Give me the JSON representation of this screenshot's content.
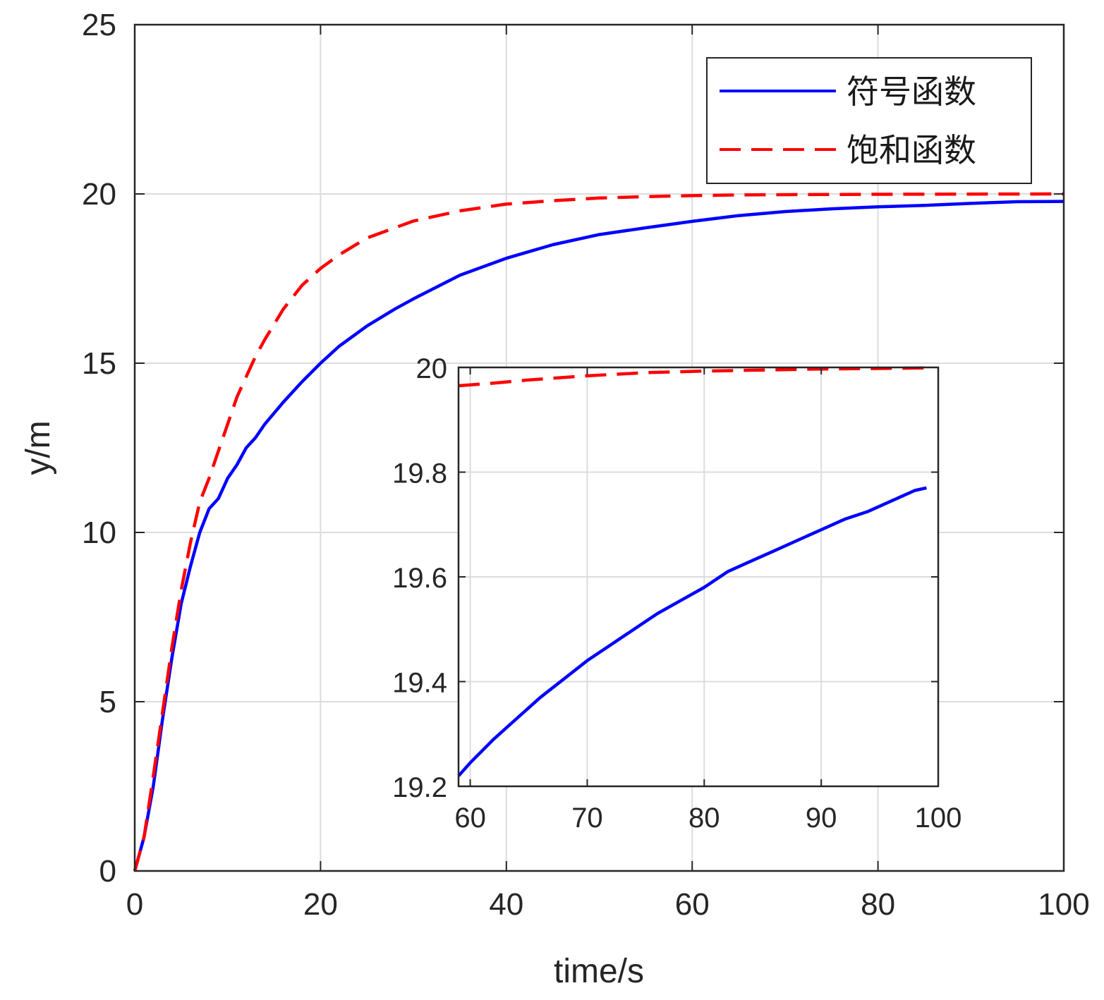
{
  "chart_data": [
    {
      "type": "line",
      "xlabel": "time/s",
      "ylabel": "y/m",
      "xlim": [
        0,
        100
      ],
      "ylim": [
        0,
        25
      ],
      "xticks": [
        "0",
        "20",
        "40",
        "60",
        "80",
        "100"
      ],
      "yticks": [
        "0",
        "5",
        "10",
        "15",
        "20",
        "25"
      ],
      "grid": true,
      "legend_position": "top-right",
      "series": [
        {
          "name": "符号函数",
          "color": "#0000ff",
          "style": "solid",
          "x": [
            0,
            1,
            2,
            3,
            4,
            5,
            6,
            7,
            8,
            9,
            10,
            11,
            12,
            13,
            14,
            16,
            18,
            20,
            22,
            25,
            28,
            30,
            35,
            40,
            45,
            50,
            55,
            60,
            65,
            70,
            75,
            80,
            85,
            90,
            95,
            100
          ],
          "y": [
            0,
            1.0,
            2.5,
            4.5,
            6.3,
            7.9,
            9.0,
            10.0,
            10.7,
            11.0,
            11.6,
            12.0,
            12.5,
            12.8,
            13.2,
            13.85,
            14.45,
            15.0,
            15.5,
            16.1,
            16.6,
            16.9,
            17.6,
            18.1,
            18.5,
            18.8,
            19.0,
            19.19,
            19.36,
            19.48,
            19.56,
            19.62,
            19.66,
            19.72,
            19.77,
            19.78
          ]
        },
        {
          "name": "饱和函数",
          "color": "#ff0000",
          "style": "dashed",
          "x": [
            0,
            1,
            2,
            3,
            4,
            5,
            6,
            7,
            8,
            9,
            10,
            11,
            12,
            13,
            14,
            16,
            18,
            20,
            22,
            25,
            28,
            30,
            35,
            40,
            45,
            50,
            55,
            60,
            65,
            70,
            80,
            90,
            100
          ],
          "y": [
            0,
            1.0,
            2.8,
            4.7,
            6.6,
            8.3,
            9.7,
            10.9,
            11.6,
            12.4,
            13.2,
            14.0,
            14.6,
            15.2,
            15.7,
            16.6,
            17.3,
            17.8,
            18.2,
            18.7,
            19.0,
            19.2,
            19.5,
            19.7,
            19.8,
            19.88,
            19.92,
            19.95,
            19.97,
            19.98,
            19.99,
            19.995,
            20.0
          ]
        }
      ]
    },
    {
      "type": "line",
      "role": "inset",
      "xlim": [
        59,
        100
      ],
      "ylim": [
        19.2,
        20
      ],
      "xticks": [
        "60",
        "70",
        "80",
        "90",
        "100"
      ],
      "yticks": [
        "19.2",
        "19.4",
        "19.6",
        "19.8",
        "20"
      ],
      "grid": true,
      "series": [
        {
          "color": "#0000ff",
          "style": "solid",
          "x": [
            59,
            60,
            62,
            64,
            66,
            68,
            70,
            72,
            74,
            76,
            78,
            80,
            82,
            84,
            86,
            88,
            90,
            92,
            94,
            96,
            98,
            99
          ],
          "y": [
            19.22,
            19.245,
            19.29,
            19.33,
            19.37,
            19.405,
            19.44,
            19.47,
            19.5,
            19.53,
            19.555,
            19.58,
            19.61,
            19.63,
            19.65,
            19.67,
            19.69,
            19.71,
            19.725,
            19.745,
            19.765,
            19.77
          ]
        },
        {
          "color": "#ff0000",
          "style": "dashed",
          "x": [
            59,
            62,
            65,
            70,
            75,
            80,
            85,
            90,
            95,
            99
          ],
          "y": [
            19.965,
            19.97,
            19.976,
            19.984,
            19.99,
            19.993,
            19.995,
            19.997,
            19.998,
            19.999
          ]
        }
      ]
    }
  ]
}
